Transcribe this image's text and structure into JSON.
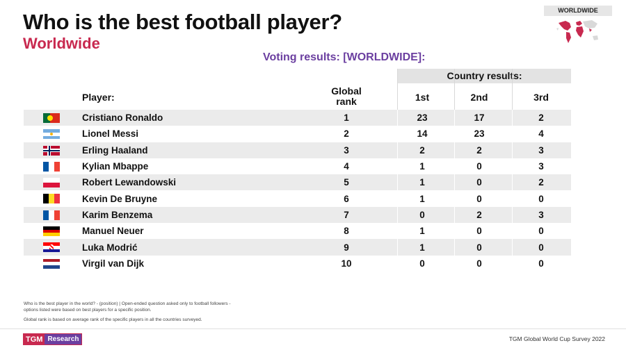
{
  "header": {
    "title": "Who is the best football player?",
    "subtitle": "Worldwide",
    "map_label": "WORLDWIDE"
  },
  "voting_title": "Voting results:  [WORLDWIDE]:",
  "table": {
    "country_results_label": "Country results:",
    "headers": {
      "player": "Player:",
      "global_rank_line1": "Global",
      "global_rank_line2": "rank",
      "first": "1st",
      "second": "2nd",
      "third": "3rd"
    },
    "rows": [
      {
        "flag": "portugal-flag",
        "player": "Cristiano Ronaldo",
        "rank": "1",
        "first": "23",
        "second": "17",
        "third": "2"
      },
      {
        "flag": "argentina-flag",
        "player": "Lionel Messi",
        "rank": "2",
        "first": "14",
        "second": "23",
        "third": "4"
      },
      {
        "flag": "norway-flag",
        "player": "Erling Haaland",
        "rank": "3",
        "first": "2",
        "second": "2",
        "third": "3"
      },
      {
        "flag": "france-flag",
        "player": "Kylian Mbappe",
        "rank": "4",
        "first": "1",
        "second": "0",
        "third": "3"
      },
      {
        "flag": "poland-flag",
        "player": "Robert Lewandowski",
        "rank": "5",
        "first": "1",
        "second": "0",
        "third": "2"
      },
      {
        "flag": "belgium-flag",
        "player": "Kevin De Bruyne",
        "rank": "6",
        "first": "1",
        "second": "0",
        "third": "0"
      },
      {
        "flag": "france-flag",
        "player": "Karim Benzema",
        "rank": "7",
        "first": "0",
        "second": "2",
        "third": "3"
      },
      {
        "flag": "germany-flag",
        "player": "Manuel Neuer",
        "rank": "8",
        "first": "1",
        "second": "0",
        "third": "0"
      },
      {
        "flag": "croatia-flag",
        "player": "Luka Modrić",
        "rank": "9",
        "first": "1",
        "second": "0",
        "third": "0"
      },
      {
        "flag": "netherlands-flag",
        "player": "Virgil van Dijk",
        "rank": "10",
        "first": "0",
        "second": "0",
        "third": "0"
      }
    ]
  },
  "footnotes": {
    "question": "Who is the best player in the world? - (position) | Open-ended question asked only to football followers - options listed were based on best players for a specific position.",
    "rank_note": "Global rank is based on average rank of the specific players in all the countries surveyed."
  },
  "footer": {
    "logo_part1": "TGM",
    "logo_part2": "Research",
    "survey_name": "TGM Global World Cup Survey 2022"
  },
  "colors": {
    "accent_red": "#c8294f",
    "accent_purple": "#6b3fa0"
  }
}
